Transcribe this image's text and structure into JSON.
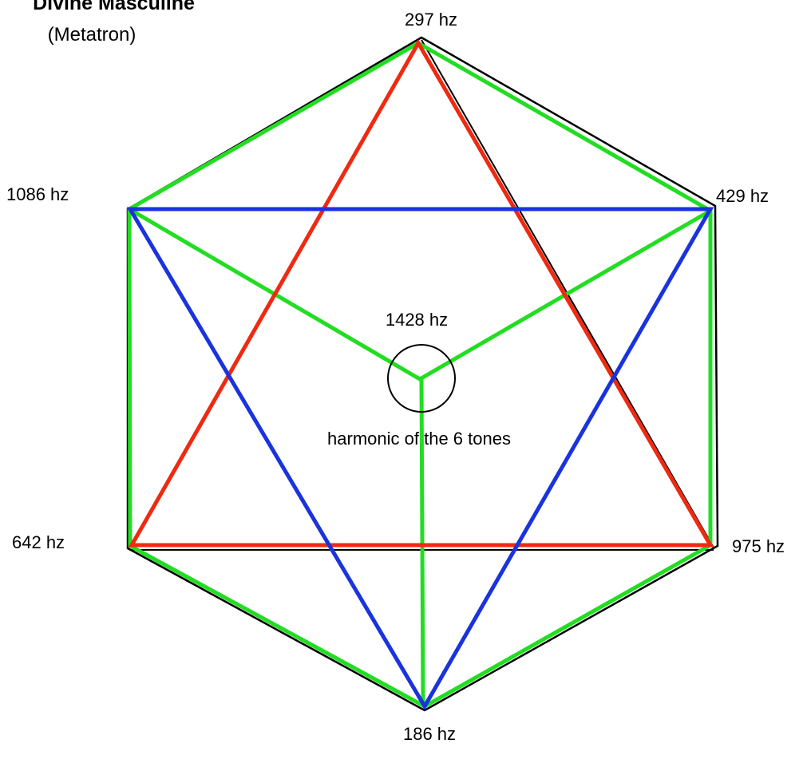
{
  "title": "Divine Masculine",
  "subtitle": "(Metatron)",
  "colors": {
    "outline": "#000000",
    "hexagon": "#22dd22",
    "triangle_up": "#ee2a11",
    "triangle_down": "#1a33dd",
    "center_circle": "#000000"
  },
  "nodes": {
    "top": "297 hz",
    "upper_right": "429 hz",
    "lower_right": "975 hz",
    "bottom": "186 hz",
    "lower_left": "642 hz",
    "upper_left": "1086 hz",
    "center": "1428 hz"
  },
  "center_caption": "harmonic of the 6 tones"
}
